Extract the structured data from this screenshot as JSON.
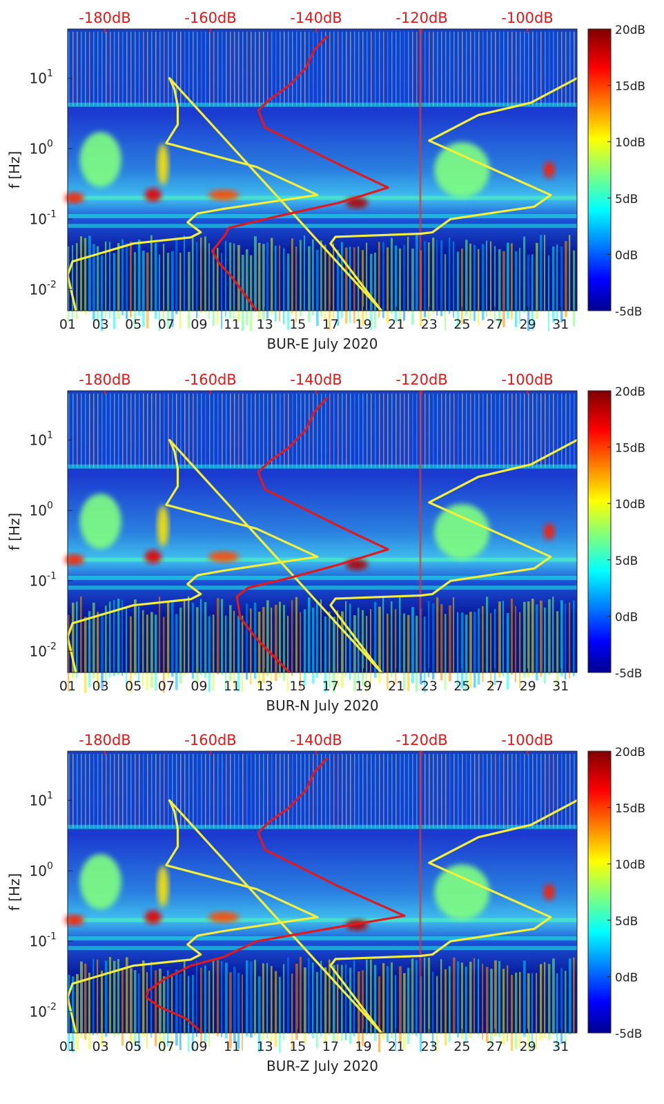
{
  "chart_data": [
    {
      "type": "heatmap",
      "title": "",
      "xlabel": "BUR-E July 2020",
      "ylabel": "f [Hz]",
      "x_ticks": [
        "01",
        "03",
        "05",
        "07",
        "09",
        "11",
        "13",
        "15",
        "17",
        "19",
        "21",
        "23",
        "25",
        "27",
        "29",
        "31"
      ],
      "y_ticks": [
        "10^-2",
        "10^-1",
        "10^0",
        "10^1"
      ],
      "y_scale": "log",
      "ylim": [
        0.005,
        50
      ],
      "xlim": [
        1,
        32
      ],
      "top_axis_ticks": [
        "-180dB",
        "-160dB",
        "-140dB",
        "-120dB",
        "-100dB"
      ],
      "colorbar": {
        "ticks": [
          "20dB",
          "15dB",
          "10dB",
          "5dB",
          "0dB",
          "-5dB"
        ],
        "range": [
          -5,
          20
        ],
        "colormap": "jet"
      },
      "series": [
        {
          "color": "#f4ef3a",
          "points": [
            [
              1.5,
              0.005
            ],
            [
              1.0,
              0.016
            ],
            [
              1.3,
              0.025
            ],
            [
              5.0,
              0.045
            ],
            [
              8.5,
              0.055
            ],
            [
              9.1,
              0.065
            ],
            [
              8.3,
              0.09
            ],
            [
              8.9,
              0.12
            ],
            [
              10.5,
              0.14
            ],
            [
              16.2,
              0.22
            ],
            [
              12.5,
              0.55
            ],
            [
              7.0,
              1.2
            ],
            [
              7.7,
              2.2
            ],
            [
              7.7,
              4.0
            ],
            [
              7.5,
              7.0
            ],
            [
              7.2,
              10.0
            ],
            [
              20.1,
              0.005
            ],
            [
              17.0,
              0.045
            ],
            [
              17.3,
              0.056
            ],
            [
              22.5,
              0.062
            ],
            [
              23.2,
              0.065
            ],
            [
              24.3,
              0.1
            ],
            [
              29.4,
              0.15
            ],
            [
              30.4,
              0.22
            ],
            [
              23.0,
              1.3
            ],
            [
              26.0,
              3.0
            ],
            [
              29.2,
              4.5
            ],
            [
              32.0,
              10.0
            ]
          ]
        },
        {
          "color": "#e3181c",
          "points": [
            [
              12.5,
              0.005
            ],
            [
              11.0,
              0.015
            ],
            [
              10.2,
              0.024
            ],
            [
              9.8,
              0.035
            ],
            [
              10.6,
              0.06
            ],
            [
              10.8,
              0.075
            ],
            [
              13.8,
              0.11
            ],
            [
              17.5,
              0.17
            ],
            [
              20.5,
              0.28
            ],
            [
              17.5,
              0.6
            ],
            [
              13.0,
              2.0
            ],
            [
              12.6,
              3.5
            ],
            [
              13.3,
              5.0
            ],
            [
              14.5,
              8.0
            ],
            [
              15.5,
              14.0
            ],
            [
              16.0,
              25.0
            ],
            [
              16.8,
              40.0
            ]
          ]
        }
      ]
    },
    {
      "type": "heatmap",
      "title": "",
      "xlabel": "BUR-N July 2020",
      "ylabel": "f [Hz]",
      "x_ticks": [
        "01",
        "03",
        "05",
        "07",
        "09",
        "11",
        "13",
        "15",
        "17",
        "19",
        "21",
        "23",
        "25",
        "27",
        "29",
        "31"
      ],
      "y_ticks": [
        "10^-2",
        "10^-1",
        "10^0",
        "10^1"
      ],
      "y_scale": "log",
      "ylim": [
        0.005,
        50
      ],
      "xlim": [
        1,
        32
      ],
      "top_axis_ticks": [
        "-180dB",
        "-160dB",
        "-140dB",
        "-120dB",
        "-100dB"
      ],
      "colorbar": {
        "ticks": [
          "20dB",
          "15dB",
          "10dB",
          "5dB",
          "0dB",
          "-5dB"
        ],
        "range": [
          -5,
          20
        ],
        "colormap": "jet"
      },
      "series": [
        {
          "color": "#f4ef3a",
          "points": [
            [
              1.5,
              0.005
            ],
            [
              1.0,
              0.016
            ],
            [
              1.3,
              0.025
            ],
            [
              5.0,
              0.045
            ],
            [
              8.5,
              0.055
            ],
            [
              9.1,
              0.065
            ],
            [
              8.3,
              0.09
            ],
            [
              8.9,
              0.12
            ],
            [
              10.5,
              0.14
            ],
            [
              16.2,
              0.22
            ],
            [
              12.5,
              0.55
            ],
            [
              7.0,
              1.2
            ],
            [
              7.7,
              2.2
            ],
            [
              7.7,
              4.0
            ],
            [
              7.5,
              7.0
            ],
            [
              7.2,
              10.0
            ],
            [
              20.1,
              0.005
            ],
            [
              17.0,
              0.045
            ],
            [
              17.3,
              0.056
            ],
            [
              22.5,
              0.062
            ],
            [
              23.2,
              0.065
            ],
            [
              24.3,
              0.1
            ],
            [
              29.4,
              0.15
            ],
            [
              30.4,
              0.22
            ],
            [
              23.0,
              1.3
            ],
            [
              26.0,
              3.0
            ],
            [
              29.2,
              4.5
            ],
            [
              32.0,
              10.0
            ]
          ]
        },
        {
          "color": "#e3181c",
          "points": [
            [
              14.5,
              0.005
            ],
            [
              12.5,
              0.015
            ],
            [
              11.5,
              0.03
            ],
            [
              11.3,
              0.06
            ],
            [
              12.0,
              0.08
            ],
            [
              14.5,
              0.11
            ],
            [
              17.5,
              0.17
            ],
            [
              20.5,
              0.28
            ],
            [
              17.5,
              0.6
            ],
            [
              13.0,
              2.0
            ],
            [
              12.6,
              3.5
            ],
            [
              13.3,
              5.0
            ],
            [
              14.5,
              8.0
            ],
            [
              15.5,
              14.0
            ],
            [
              16.0,
              25.0
            ],
            [
              16.8,
              40.0
            ]
          ]
        }
      ]
    },
    {
      "type": "heatmap",
      "title": "",
      "xlabel": "BUR-Z July 2020",
      "ylabel": "f [Hz]",
      "x_ticks": [
        "01",
        "03",
        "05",
        "07",
        "09",
        "11",
        "13",
        "15",
        "17",
        "19",
        "21",
        "23",
        "25",
        "27",
        "29",
        "31"
      ],
      "y_ticks": [
        "10^-2",
        "10^-1",
        "10^0",
        "10^1"
      ],
      "y_scale": "log",
      "ylim": [
        0.005,
        50
      ],
      "xlim": [
        1,
        32
      ],
      "top_axis_ticks": [
        "-180dB",
        "-160dB",
        "-140dB",
        "-120dB",
        "-100dB"
      ],
      "colorbar": {
        "ticks": [
          "20dB",
          "15dB",
          "10dB",
          "5dB",
          "0dB",
          "-5dB"
        ],
        "range": [
          -5,
          20
        ],
        "colormap": "jet"
      },
      "series": [
        {
          "color": "#f4ef3a",
          "points": [
            [
              1.5,
              0.005
            ],
            [
              1.0,
              0.016
            ],
            [
              1.3,
              0.025
            ],
            [
              5.0,
              0.045
            ],
            [
              8.5,
              0.055
            ],
            [
              9.1,
              0.065
            ],
            [
              8.3,
              0.09
            ],
            [
              8.9,
              0.12
            ],
            [
              10.5,
              0.14
            ],
            [
              16.2,
              0.22
            ],
            [
              12.5,
              0.55
            ],
            [
              7.0,
              1.2
            ],
            [
              7.7,
              2.2
            ],
            [
              7.7,
              4.0
            ],
            [
              7.5,
              7.0
            ],
            [
              7.2,
              10.0
            ],
            [
              20.1,
              0.005
            ],
            [
              17.0,
              0.045
            ],
            [
              17.3,
              0.056
            ],
            [
              22.5,
              0.062
            ],
            [
              23.2,
              0.065
            ],
            [
              24.3,
              0.1
            ],
            [
              29.4,
              0.15
            ],
            [
              30.4,
              0.22
            ],
            [
              23.0,
              1.3
            ],
            [
              26.0,
              3.0
            ],
            [
              29.2,
              4.5
            ],
            [
              32.0,
              10.0
            ]
          ]
        },
        {
          "color": "#e3181c",
          "points": [
            [
              9.2,
              0.005
            ],
            [
              8.2,
              0.008
            ],
            [
              6.5,
              0.012
            ],
            [
              5.8,
              0.016
            ],
            [
              5.9,
              0.02
            ],
            [
              7.0,
              0.03
            ],
            [
              8.5,
              0.045
            ],
            [
              10.5,
              0.06
            ],
            [
              12.5,
              0.1
            ],
            [
              17.5,
              0.16
            ],
            [
              21.5,
              0.23
            ],
            [
              17.5,
              0.6
            ],
            [
              13.0,
              2.0
            ],
            [
              12.6,
              3.5
            ],
            [
              13.3,
              5.0
            ],
            [
              14.5,
              8.0
            ],
            [
              15.5,
              14.0
            ],
            [
              16.0,
              25.0
            ],
            [
              16.8,
              40.0
            ]
          ]
        }
      ]
    }
  ]
}
